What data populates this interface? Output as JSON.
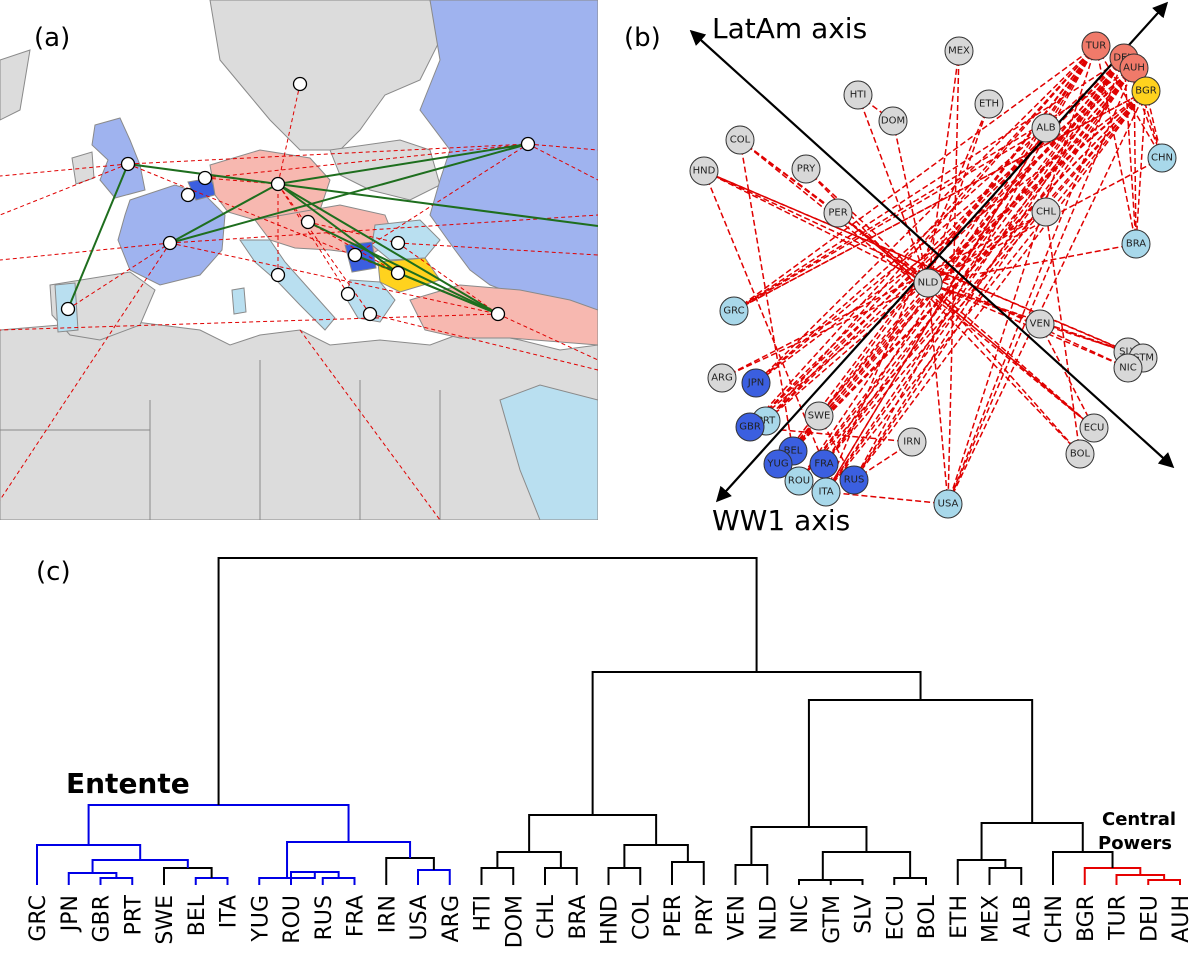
{
  "panels": {
    "a_label": "(a)",
    "b_label": "(b)",
    "c_label": "(c)"
  },
  "colors": {
    "entente": "#0000e6",
    "central": "#e60000",
    "neutral": "#000000",
    "entente_fill": "#3b5fe0",
    "entente_light_fill": "#a8d8ea",
    "central_fill": "#f07a6a",
    "neutral_fill": "#d8d8d8",
    "bulgaria_fill": "#ffd21e",
    "conflict_edge": "#e00000",
    "alliance_edge": "#006400"
  },
  "embedding": {
    "axis_latam": "LatAm axis",
    "axis_ww1": "WW1 axis",
    "nodes": [
      {
        "code": "MEX",
        "group": "neutral"
      },
      {
        "code": "TUR",
        "group": "central"
      },
      {
        "code": "DEU",
        "group": "central"
      },
      {
        "code": "AUH",
        "group": "central"
      },
      {
        "code": "BGR",
        "group": "bulgaria"
      },
      {
        "code": "HTI",
        "group": "neutral"
      },
      {
        "code": "ETH",
        "group": "neutral"
      },
      {
        "code": "DOM",
        "group": "neutral"
      },
      {
        "code": "ALB",
        "group": "neutral"
      },
      {
        "code": "COL",
        "group": "neutral"
      },
      {
        "code": "CHN",
        "group": "entente_light"
      },
      {
        "code": "HND",
        "group": "neutral"
      },
      {
        "code": "PRY",
        "group": "neutral"
      },
      {
        "code": "PER",
        "group": "neutral"
      },
      {
        "code": "CHL",
        "group": "neutral"
      },
      {
        "code": "BRA",
        "group": "entente_light"
      },
      {
        "code": "NLD",
        "group": "neutral"
      },
      {
        "code": "GRC",
        "group": "entente_light"
      },
      {
        "code": "VEN",
        "group": "neutral"
      },
      {
        "code": "SLV",
        "group": "neutral"
      },
      {
        "code": "GTM",
        "group": "neutral"
      },
      {
        "code": "NIC",
        "group": "neutral"
      },
      {
        "code": "ARG",
        "group": "neutral"
      },
      {
        "code": "JPN",
        "group": "entente"
      },
      {
        "code": "PRT",
        "group": "entente_light"
      },
      {
        "code": "GBR",
        "group": "entente"
      },
      {
        "code": "SWE",
        "group": "neutral"
      },
      {
        "code": "IRN",
        "group": "neutral"
      },
      {
        "code": "ECU",
        "group": "neutral"
      },
      {
        "code": "BEL",
        "group": "entente"
      },
      {
        "code": "YUG",
        "group": "entente"
      },
      {
        "code": "FRA",
        "group": "entente"
      },
      {
        "code": "ROU",
        "group": "entente_light"
      },
      {
        "code": "RUS",
        "group": "entente"
      },
      {
        "code": "ITA",
        "group": "entente_light"
      },
      {
        "code": "BOL",
        "group": "neutral"
      },
      {
        "code": "USA",
        "group": "entente_light"
      }
    ]
  },
  "dendrogram": {
    "cluster_entente": "Entente",
    "cluster_central_line1": "Central",
    "cluster_central_line2": "Powers",
    "leaves": [
      "GRC",
      "JPN",
      "GBR",
      "PRT",
      "SWE",
      "BEL",
      "ITA",
      "YUG",
      "ROU",
      "RUS",
      "FRA",
      "IRN",
      "USA",
      "ARG",
      "HTI",
      "DOM",
      "CHL",
      "BRA",
      "HND",
      "COL",
      "PER",
      "PRY",
      "VEN",
      "NLD",
      "NIC",
      "GTM",
      "SLV",
      "ECU",
      "BOL",
      "ETH",
      "MEX",
      "ALB",
      "CHN",
      "BGR",
      "TUR",
      "DEU",
      "AUH"
    ]
  }
}
